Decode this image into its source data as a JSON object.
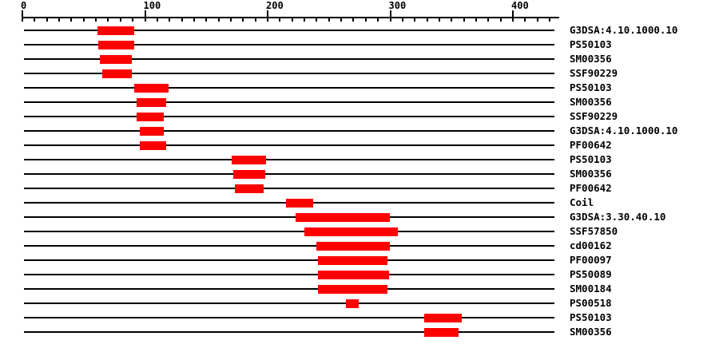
{
  "chart_data": {
    "type": "domain-track",
    "title": "",
    "description": "Protein sequence feature matches drawn as red bars on per-feature horizontal tracks with a residue ruler on top",
    "x_axis": {
      "min": 0,
      "max": 438,
      "major_ticks": [
        0,
        100,
        200,
        300,
        400
      ],
      "minor_tick_step": 10,
      "last_minor_tick": 430,
      "grid": false
    },
    "legend": "none",
    "bar_color": "#ff0000",
    "line_color": "#000000",
    "tracks": [
      {
        "label": "G3DSA:4.10.1000.10",
        "start": 61,
        "end": 91
      },
      {
        "label": "PS50103",
        "start": 62,
        "end": 91
      },
      {
        "label": "SM00356",
        "start": 63,
        "end": 89
      },
      {
        "label": "SSF90229",
        "start": 65,
        "end": 89
      },
      {
        "label": "PS50103",
        "start": 91,
        "end": 119
      },
      {
        "label": "SM00356",
        "start": 93,
        "end": 117
      },
      {
        "label": "SSF90229",
        "start": 93,
        "end": 115
      },
      {
        "label": "G3DSA:4.10.1000.10",
        "start": 96,
        "end": 115
      },
      {
        "label": "PF00642",
        "start": 96,
        "end": 117
      },
      {
        "label": "PS50103",
        "start": 171,
        "end": 199
      },
      {
        "label": "SM00356",
        "start": 172,
        "end": 198
      },
      {
        "label": "PF00642",
        "start": 173,
        "end": 197
      },
      {
        "label": "Coil",
        "start": 215,
        "end": 237
      },
      {
        "label": "G3DSA:3.30.40.10",
        "start": 223,
        "end": 300
      },
      {
        "label": "SSF57850",
        "start": 230,
        "end": 306
      },
      {
        "label": "cd00162",
        "start": 240,
        "end": 300
      },
      {
        "label": "PF00097",
        "start": 241,
        "end": 298
      },
      {
        "label": "PS50089",
        "start": 241,
        "end": 299
      },
      {
        "label": "SM00184",
        "start": 241,
        "end": 298
      },
      {
        "label": "PS00518",
        "start": 264,
        "end": 274
      },
      {
        "label": "PS50103",
        "start": 328,
        "end": 358
      },
      {
        "label": "SM00356",
        "start": 328,
        "end": 356
      }
    ]
  }
}
